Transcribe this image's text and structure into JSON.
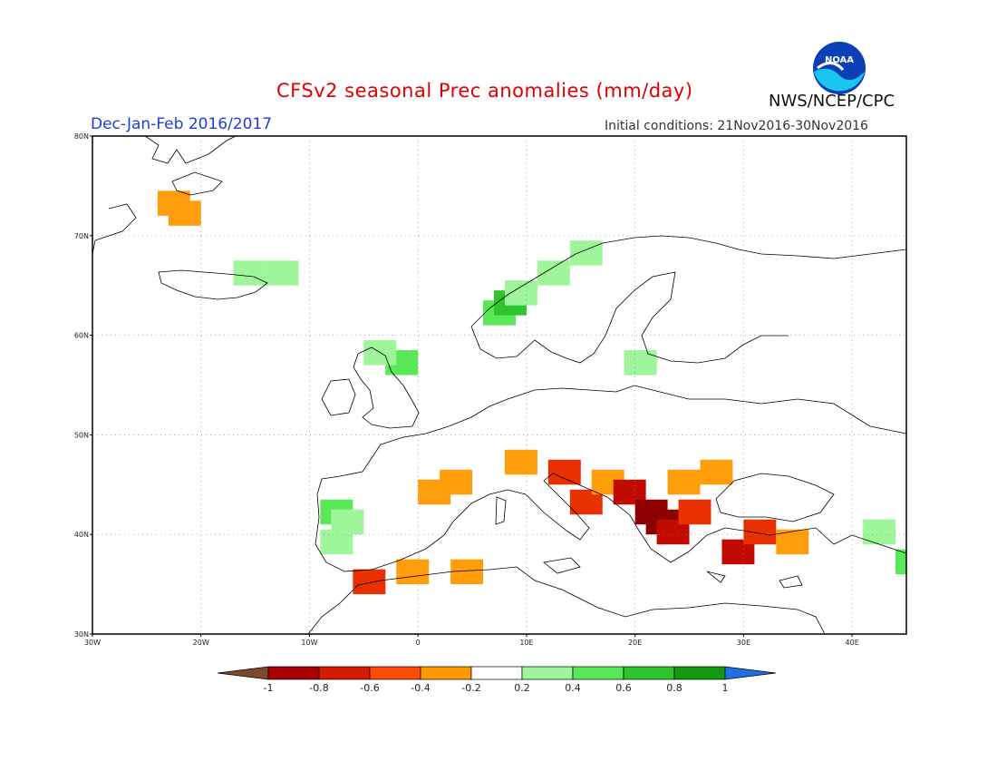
{
  "header": {
    "title": "CFSv2 seasonal Prec anomalies (mm/day)",
    "season": "Dec-Jan-Feb 2016/2017",
    "initial_conditions": "Initial conditions: 21Nov2016-30Nov2016",
    "agency": "NWS/NCEP/CPC",
    "logo_text": "NOAA"
  },
  "map": {
    "region": "Europe",
    "lon_range": [
      -30,
      45
    ],
    "lat_range": [
      30,
      80
    ],
    "lat_ticks": [
      "30N",
      "40N",
      "50N",
      "60N",
      "70N",
      "80N"
    ],
    "lon_ticks": [
      "30W",
      "20W",
      "10W",
      "0",
      "10E",
      "20E",
      "30E",
      "40E"
    ],
    "gridlines": "dotted",
    "anomaly_cells": [
      {
        "lon": -24,
        "lat": 72,
        "class": "-0.4"
      },
      {
        "lon": -23,
        "lat": 71,
        "class": "-0.4"
      },
      {
        "lon": -17,
        "lat": 65,
        "class": "0.2"
      },
      {
        "lon": -14,
        "lat": 65,
        "class": "0.2"
      },
      {
        "lon": -9,
        "lat": 41,
        "class": "0.4"
      },
      {
        "lon": -8,
        "lat": 40,
        "class": "0.2"
      },
      {
        "lon": -9,
        "lat": 38,
        "class": "0.2"
      },
      {
        "lon": -3,
        "lat": 56,
        "class": "0.4"
      },
      {
        "lon": -5,
        "lat": 57,
        "class": "0.2"
      },
      {
        "lon": 6,
        "lat": 61,
        "class": "0.4"
      },
      {
        "lon": 7,
        "lat": 62,
        "class": "0.6"
      },
      {
        "lon": 8,
        "lat": 63,
        "class": "0.2"
      },
      {
        "lon": 11,
        "lat": 65,
        "class": "0.2"
      },
      {
        "lon": 14,
        "lat": 67,
        "class": "0.2"
      },
      {
        "lon": 19,
        "lat": 56,
        "class": "0.2"
      },
      {
        "lon": 0,
        "lat": 43,
        "class": "-0.4"
      },
      {
        "lon": 2,
        "lat": 44,
        "class": "-0.4"
      },
      {
        "lon": 8,
        "lat": 46,
        "class": "-0.4"
      },
      {
        "lon": 12,
        "lat": 45,
        "class": "-0.6"
      },
      {
        "lon": 14,
        "lat": 42,
        "class": "-0.6"
      },
      {
        "lon": 16,
        "lat": 44,
        "class": "-0.4"
      },
      {
        "lon": 18,
        "lat": 43,
        "class": "-0.8"
      },
      {
        "lon": 20,
        "lat": 41,
        "class": "-1"
      },
      {
        "lon": 21,
        "lat": 40,
        "class": "-1"
      },
      {
        "lon": 22,
        "lat": 39,
        "class": "-0.8"
      },
      {
        "lon": 24,
        "lat": 41,
        "class": "-0.6"
      },
      {
        "lon": 23,
        "lat": 44,
        "class": "-0.4"
      },
      {
        "lon": 26,
        "lat": 45,
        "class": "-0.4"
      },
      {
        "lon": 28,
        "lat": 37,
        "class": "-0.8"
      },
      {
        "lon": 30,
        "lat": 39,
        "class": "-0.6"
      },
      {
        "lon": 33,
        "lat": 38,
        "class": "-0.4"
      },
      {
        "lon": -6,
        "lat": 34,
        "class": "-0.6"
      },
      {
        "lon": -2,
        "lat": 35,
        "class": "-0.4"
      },
      {
        "lon": 3,
        "lat": 35,
        "class": "-0.4"
      },
      {
        "lon": 41,
        "lat": 39,
        "class": "0.2"
      },
      {
        "lon": 44,
        "lat": 36,
        "class": "0.4"
      }
    ]
  },
  "colorbar": {
    "labels": [
      "-1",
      "-0.8",
      "-0.6",
      "-0.4",
      "-0.2",
      "0.2",
      "0.4",
      "0.6",
      "0.8",
      "1"
    ],
    "colors": [
      "#7a4a2a",
      "#a80000",
      "#d51a00",
      "#ff4a00",
      "#ff9900",
      "#ffffff",
      "#9ff59a",
      "#58e858",
      "#2ec42e",
      "#129912",
      "#1e6fe0"
    ]
  }
}
